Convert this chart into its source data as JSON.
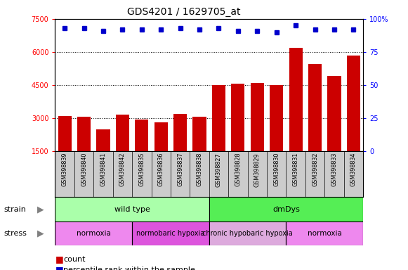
{
  "title": "GDS4201 / 1629705_at",
  "samples": [
    "GSM398839",
    "GSM398840",
    "GSM398841",
    "GSM398842",
    "GSM398835",
    "GSM398836",
    "GSM398837",
    "GSM398838",
    "GSM398827",
    "GSM398828",
    "GSM398829",
    "GSM398830",
    "GSM398831",
    "GSM398832",
    "GSM398833",
    "GSM398834"
  ],
  "counts": [
    3100,
    3050,
    2500,
    3150,
    2950,
    2800,
    3200,
    3050,
    4500,
    4550,
    4600,
    4500,
    6200,
    5450,
    4900,
    5850
  ],
  "percentiles": [
    93,
    93,
    91,
    92,
    92,
    92,
    93,
    92,
    93,
    91,
    91,
    90,
    95,
    92,
    92,
    92
  ],
  "ylim_left": [
    1500,
    7500
  ],
  "ylim_right": [
    0,
    100
  ],
  "yticks_left": [
    1500,
    3000,
    4500,
    6000,
    7500
  ],
  "yticks_right": [
    0,
    25,
    50,
    75,
    100
  ],
  "bar_color": "#cc0000",
  "dot_color": "#0000cc",
  "strain_groups": [
    {
      "label": "wild type",
      "start": 0,
      "end": 8,
      "color": "#aaffaa"
    },
    {
      "label": "dmDys",
      "start": 8,
      "end": 16,
      "color": "#55ee55"
    }
  ],
  "stress_groups": [
    {
      "label": "normoxia",
      "start": 0,
      "end": 4,
      "color": "#ee88ee"
    },
    {
      "label": "normobaric hypoxia",
      "start": 4,
      "end": 8,
      "color": "#dd55dd"
    },
    {
      "label": "chronic hypobaric hypoxia",
      "start": 8,
      "end": 12,
      "color": "#ddaadd"
    },
    {
      "label": "normoxia",
      "start": 12,
      "end": 16,
      "color": "#ee88ee"
    }
  ],
  "bg_color": "#ffffff",
  "tick_area_bg": "#cccccc"
}
